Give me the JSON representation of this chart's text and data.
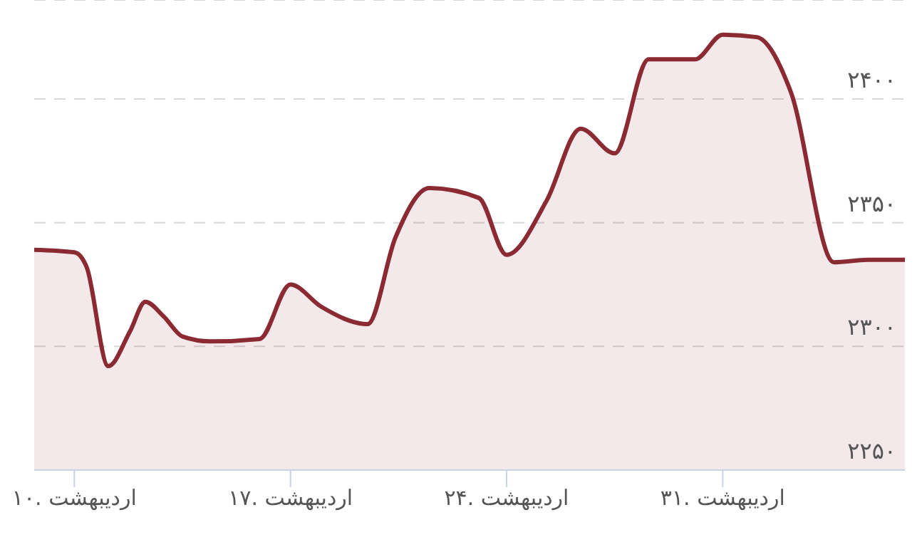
{
  "chart_data": {
    "type": "area",
    "x": [
      8.7,
      10,
      10.4,
      11.1,
      11.8,
      12.3,
      12.9,
      13.5,
      14.4,
      16,
      17,
      18,
      19.5,
      20.4,
      21.5,
      23.1,
      24,
      25.3,
      26.4,
      27.5,
      28.6,
      30.1,
      31,
      32.1,
      33.2,
      34.6,
      35.7,
      36.9
    ],
    "series": [
      {
        "color": "#8b2a33",
        "values": [
          2339,
          2338,
          2332,
          2292,
          2306,
          2318,
          2312,
          2304,
          2302,
          2303,
          2325,
          2316,
          2309,
          2344,
          2364,
          2360,
          2337,
          2359,
          2388,
          2378,
          2416,
          2416,
          2426,
          2425,
          2403,
          2334,
          2335,
          2335
        ]
      }
    ],
    "xlim": [
      8.7,
      36.9
    ],
    "xticks": [
      {
        "value": 10,
        "label": "۱۰. اردیبهشت"
      },
      {
        "value": 17,
        "label": "۱۷. اردیبهشت"
      },
      {
        "value": 24,
        "label": "۲۴. اردیبهشت"
      },
      {
        "value": 31,
        "label": "۳۱. اردیبهشت"
      }
    ],
    "ylim": [
      2250,
      2440
    ],
    "yticks": [
      {
        "value": 2250,
        "label": "۲۲۵۰"
      },
      {
        "value": 2300,
        "label": "۲۳۰۰"
      },
      {
        "value": 2350,
        "label": "۲۳۵۰"
      },
      {
        "value": 2400,
        "label": "۲۴۰۰"
      }
    ],
    "grid": "y",
    "marker": "none",
    "line_style": "solid"
  }
}
